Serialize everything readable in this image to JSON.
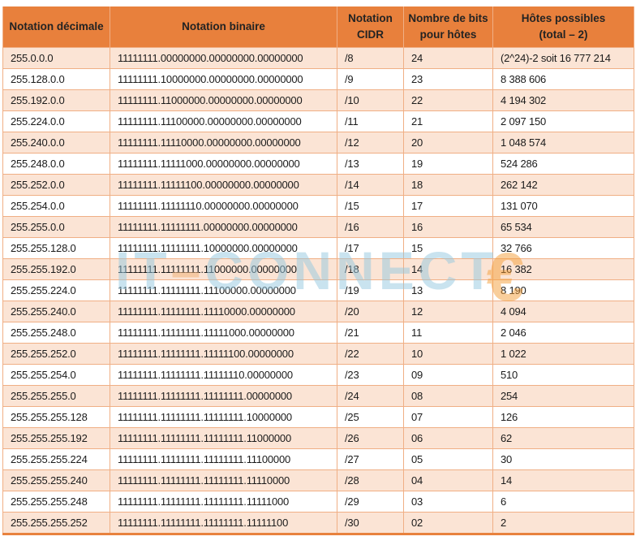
{
  "table": {
    "columns": [
      {
        "key": "decimal",
        "label": "Notation décimale"
      },
      {
        "key": "binary",
        "label": "Notation binaire"
      },
      {
        "key": "cidr",
        "label": "Notation\nCIDR"
      },
      {
        "key": "bits",
        "label": "Nombre de bits\npour hôtes"
      },
      {
        "key": "hosts",
        "label": "Hôtes possibles\n(total – 2)"
      }
    ],
    "rows": [
      [
        "255.0.0.0",
        "11111111.00000000.00000000.00000000",
        "/8",
        "24",
        "(2^24)-2 soit 16 777 214"
      ],
      [
        "255.128.0.0",
        "11111111.10000000.00000000.00000000",
        "/9",
        "23",
        "8 388 606"
      ],
      [
        "255.192.0.0",
        "11111111.11000000.00000000.00000000",
        "/10",
        "22",
        "4 194 302"
      ],
      [
        "255.224.0.0",
        "11111111.11100000.00000000.00000000",
        "/11",
        "21",
        "2 097 150"
      ],
      [
        "255.240.0.0",
        "11111111.11110000.00000000.00000000",
        "/12",
        "20",
        "1 048 574"
      ],
      [
        "255.248.0.0",
        "11111111.11111000.00000000.00000000",
        "/13",
        "19",
        "524 286"
      ],
      [
        "255.252.0.0",
        "11111111.11111100.00000000.00000000",
        "/14",
        "18",
        "262 142"
      ],
      [
        "255.254.0.0",
        "11111111.11111110.00000000.00000000",
        "/15",
        "17",
        "131 070"
      ],
      [
        "255.255.0.0",
        "11111111.11111111.00000000.00000000",
        "/16",
        "16",
        "65 534"
      ],
      [
        "255.255.128.0",
        "11111111.11111111.10000000.00000000",
        "/17",
        "15",
        "32 766"
      ],
      [
        "255.255.192.0",
        "11111111.11111111.11000000.00000000",
        "/18",
        "14",
        "16 382"
      ],
      [
        "255.255.224.0",
        "11111111.11111111.11100000.00000000",
        "/19",
        "13",
        "8 190"
      ],
      [
        "255.255.240.0",
        "11111111.11111111.11110000.00000000",
        "/20",
        "12",
        "4 094"
      ],
      [
        "255.255.248.0",
        "11111111.11111111.11111000.00000000",
        "/21",
        "11",
        "2 046"
      ],
      [
        "255.255.252.0",
        "11111111.11111111.11111100.00000000",
        "/22",
        "10",
        "1 022"
      ],
      [
        "255.255.254.0",
        "11111111.11111111.11111110.00000000",
        "/23",
        "09",
        "510"
      ],
      [
        "255.255.255.0",
        "11111111.11111111.11111111.00000000",
        "/24",
        "08",
        "254"
      ],
      [
        "255.255.255.128",
        "11111111.11111111.11111111.10000000",
        "/25",
        "07",
        "126"
      ],
      [
        "255.255.255.192",
        "11111111.11111111.11111111.11000000",
        "/26",
        "06",
        "62"
      ],
      [
        "255.255.255.224",
        "11111111.11111111.11111111.11100000",
        "/27",
        "05",
        "30"
      ],
      [
        "255.255.255.240",
        "11111111.11111111.11111111.11110000",
        "/28",
        "04",
        "14"
      ],
      [
        "255.255.255.248",
        "11111111.11111111.11111111.11111000",
        "/29",
        "03",
        "6"
      ],
      [
        "255.255.255.252",
        "11111111.11111111.11111111.11111100",
        "/30",
        "02",
        "2"
      ]
    ]
  },
  "watermark": {
    "part1": "IT",
    "separator": "–",
    "part2": "CONNECT",
    "symbol": "€"
  },
  "colors": {
    "header_bg": "#E8803C",
    "header_text": "#232323",
    "row_alt_bg": "#FBE4D5",
    "row_bg": "#FFFFFF",
    "border": "#F0AF85",
    "bottom_border": "#E8823E",
    "cell_text": "#1B1B1B",
    "watermark_blue": "#93C8E0",
    "watermark_orange": "#F49E37"
  }
}
